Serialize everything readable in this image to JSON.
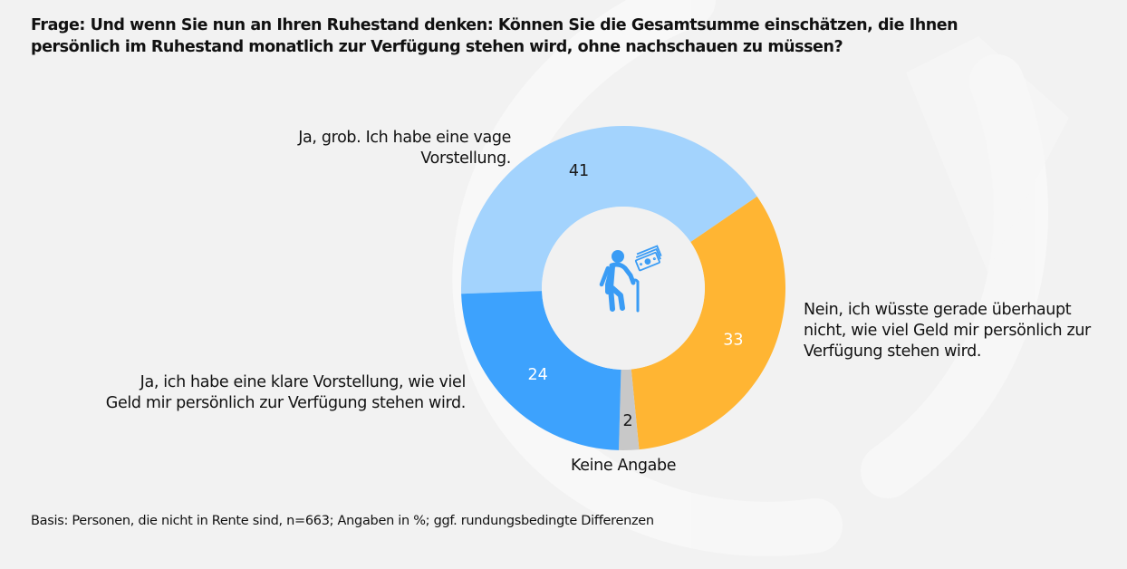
{
  "title": "Frage: Und wenn Sie nun an Ihren Ruhestand denken: Können Sie die Gesamtsumme einschätzen, die Ihnen persönlich im Ruhestand monatlich zur Verfügung stehen wird, ohne nachschauen zu müssen?",
  "footnote": "Basis: Personen, die nicht in Rente sind, n=663; Angaben in %; ggf. rundungsbedingte Differenzen",
  "center_icon": "elderly-person-with-cane-and-money-icon",
  "chart_data": {
    "type": "pie",
    "variant": "donut",
    "title": "Frage: Und wenn Sie nun an Ihren Ruhestand denken: Können Sie die Gesamtsumme einschätzen, die Ihnen persönlich im Ruhestand monatlich zur Verfügung stehen wird, ohne nachschauen zu müssen?",
    "unit": "%",
    "slices": [
      {
        "key": "vage",
        "label": "Ja, grob. Ich habe eine vage Vorstellung.",
        "value": 41,
        "color": "#a3d3fd",
        "value_color": "#1a1a1a"
      },
      {
        "key": "nein",
        "label": "Nein, ich wüsste gerade überhaupt nicht, wie viel Geld mir persönlich zur Verfügung stehen wird.",
        "value": 33,
        "color": "#ffb533",
        "value_color": "#ffffff"
      },
      {
        "key": "keine",
        "label": "Keine Angabe",
        "value": 2,
        "color": "#c8c8c8",
        "value_color": "#1a1a1a"
      },
      {
        "key": "klar",
        "label": "Ja, ich habe eine klare Vorstellung, wie viel Geld mir persönlich zur Verfügung stehen wird.",
        "value": 24,
        "color": "#3da2fd",
        "value_color": "#ffffff"
      }
    ],
    "legend": "none (direct labels)"
  },
  "colors": {
    "background": "#f2f2f2",
    "icon": "#3a9cf5"
  }
}
